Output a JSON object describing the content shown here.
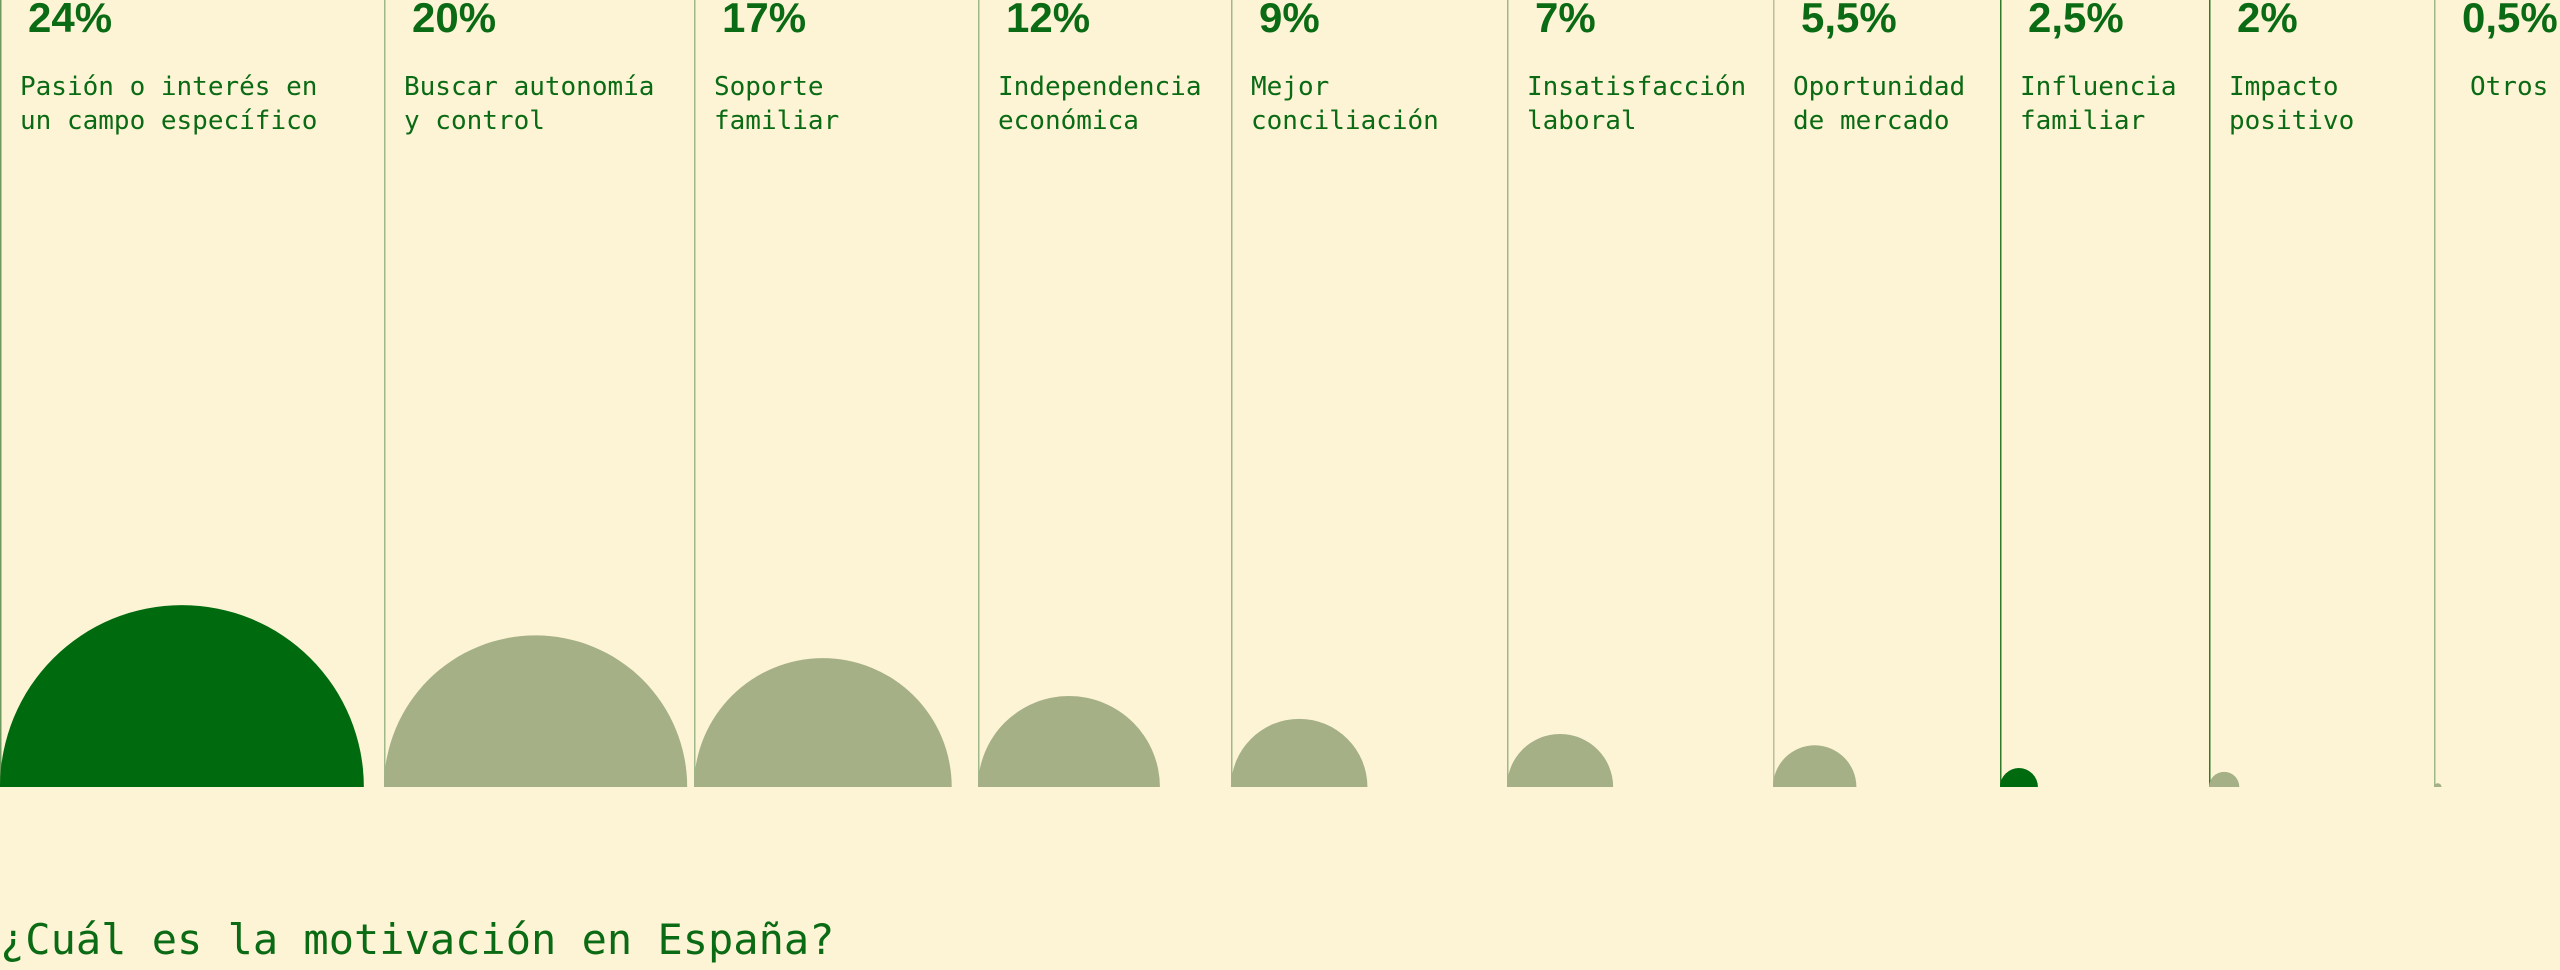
{
  "chart_data": {
    "type": "semicircle",
    "title": "¿Cuál es la motivación en España?",
    "categories": [
      "Pasión o interés en\nun campo específico",
      "Buscar autonomía\ny control",
      "Soporte\nfamiliar",
      "Independencia\neconómica",
      "Mejor\nconciliación",
      "Insatisfacción\nlaboral",
      "Oportunidad\nde mercado",
      "Influencia\nfamiliar",
      "Impacto\npositivo",
      "Otros"
    ],
    "values": [
      24,
      20,
      17,
      12,
      9,
      7,
      5.5,
      2.5,
      2,
      0.5
    ],
    "value_labels": [
      "24%",
      "20%",
      "17%",
      "12%",
      "9%",
      "7%",
      "5,5%",
      "2,5%",
      "2%",
      "0,5%"
    ],
    "colors": [
      "#006a0e",
      "#a5b087",
      "#a5b087",
      "#a5b087",
      "#a5b087",
      "#a5b087",
      "#a5b087",
      "#006a0e",
      "#a5b087",
      "#a5b087"
    ]
  }
}
